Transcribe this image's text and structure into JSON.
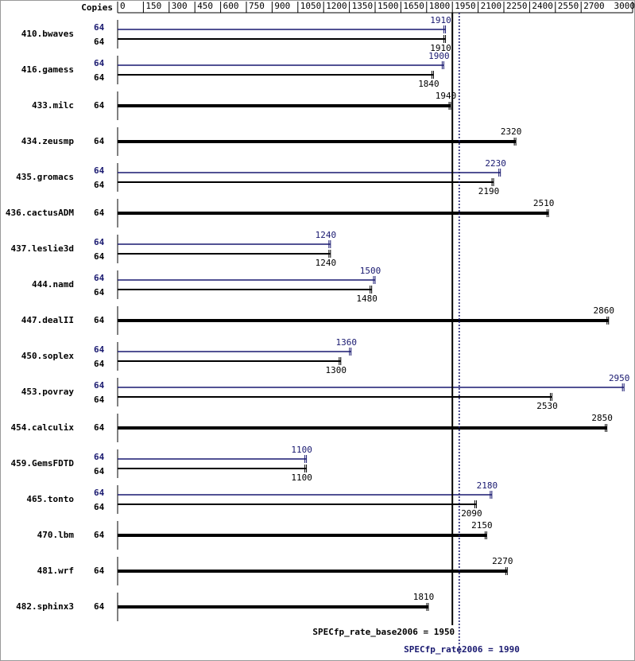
{
  "chart_data": {
    "type": "bar",
    "copies_header": "Copies",
    "categories": [
      "410.bwaves",
      "416.gamess",
      "433.milc",
      "434.zeusmp",
      "435.gromacs",
      "436.cactusADM",
      "437.leslie3d",
      "444.namd",
      "447.dealII",
      "450.soplex",
      "453.povray",
      "454.calculix",
      "459.GemsFDTD",
      "465.tonto",
      "470.lbm",
      "481.wrf",
      "482.sphinx3"
    ],
    "series": [
      {
        "name": "SPECfp_rate2006",
        "color": "#191970",
        "copies": [
          64,
          64,
          null,
          null,
          64,
          null,
          64,
          64,
          null,
          64,
          64,
          null,
          64,
          64,
          null,
          null,
          null
        ],
        "values": [
          1910,
          1900,
          null,
          null,
          2230,
          null,
          1240,
          1500,
          null,
          1360,
          2950,
          null,
          1100,
          2180,
          null,
          null,
          null
        ]
      },
      {
        "name": "SPECfp_rate_base2006",
        "color": "#000000",
        "copies": [
          64,
          64,
          64,
          64,
          64,
          64,
          64,
          64,
          64,
          64,
          64,
          64,
          64,
          64,
          64,
          64,
          64
        ],
        "values": [
          1910,
          1840,
          1940,
          2320,
          2190,
          2510,
          1240,
          1480,
          2860,
          1300,
          2530,
          2850,
          1100,
          2090,
          2150,
          2270,
          1810
        ]
      }
    ],
    "reference_lines": [
      {
        "label": "SPECfp_rate_base2006 = 1950",
        "value": 1950,
        "color": "#000000"
      },
      {
        "label": "SPECfp_rate2006 = 1990",
        "value": 1990,
        "color": "#191970"
      }
    ],
    "xlim": [
      0,
      3000
    ],
    "xticks": [
      0,
      150,
      300,
      450,
      600,
      750,
      900,
      1050,
      1200,
      1350,
      1500,
      1650,
      1800,
      1950,
      2100,
      2250,
      2400,
      2550,
      2700,
      3000
    ]
  }
}
